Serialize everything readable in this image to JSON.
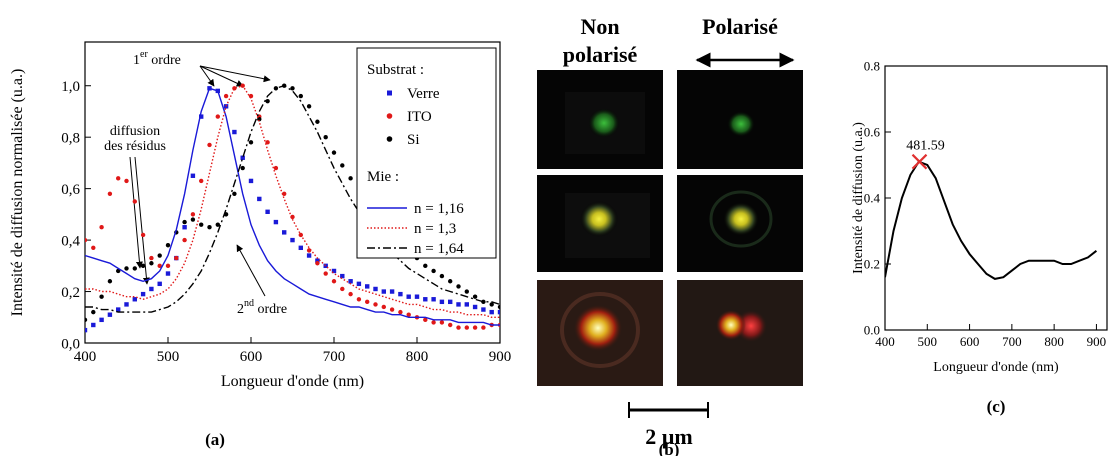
{
  "chart_data": [
    {
      "type": "line",
      "caption": "(a)",
      "xlabel": "Longueur d'onde (nm)",
      "ylabel": "Intensité de diffusion normalisée (u.a.)",
      "x": [
        400,
        410,
        420,
        430,
        440,
        450,
        460,
        470,
        480,
        490,
        500,
        510,
        520,
        530,
        540,
        550,
        560,
        570,
        580,
        590,
        600,
        610,
        620,
        630,
        640,
        650,
        660,
        670,
        680,
        690,
        700,
        710,
        720,
        730,
        740,
        750,
        760,
        770,
        780,
        790,
        800,
        810,
        820,
        830,
        840,
        850,
        860,
        870,
        880,
        890,
        900
      ],
      "xlim": [
        400,
        900
      ],
      "xticks": [
        400,
        500,
        600,
        700,
        800,
        900
      ],
      "ylim": [
        0,
        1.17
      ],
      "yticks": [
        {
          "value": 0,
          "label": "0,0"
        },
        {
          "value": 0.2,
          "label": "0,2"
        },
        {
          "value": 0.4,
          "label": "0,4"
        },
        {
          "value": 0.6,
          "label": "0,6"
        },
        {
          "value": 0.8,
          "label": "0,8"
        },
        {
          "value": 1,
          "label": "1,0"
        }
      ],
      "legend": "upper right",
      "groups": [
        {
          "title": "Substrat :",
          "series": [
            {
              "name": "Verre",
              "color": "#1a1ad8",
              "marker": "square",
              "values": [
                0.05,
                0.07,
                0.09,
                0.11,
                0.13,
                0.15,
                0.17,
                0.19,
                0.21,
                0.23,
                0.27,
                0.33,
                0.45,
                0.65,
                0.88,
                0.99,
                0.98,
                0.92,
                0.82,
                0.72,
                0.63,
                0.56,
                0.51,
                0.47,
                0.43,
                0.4,
                0.37,
                0.34,
                0.32,
                0.3,
                0.28,
                0.26,
                0.24,
                0.23,
                0.22,
                0.21,
                0.2,
                0.2,
                0.19,
                0.18,
                0.18,
                0.17,
                0.17,
                0.16,
                0.16,
                0.15,
                0.15,
                0.14,
                0.13,
                0.12,
                0.12
              ]
            },
            {
              "name": "ITO",
              "color": "#e01818",
              "marker": "circle",
              "values": [
                0.4,
                0.37,
                0.45,
                0.58,
                0.64,
                0.63,
                0.55,
                0.42,
                0.33,
                0.3,
                0.3,
                0.33,
                0.4,
                0.5,
                0.63,
                0.77,
                0.88,
                0.96,
                0.99,
                1.0,
                0.96,
                0.88,
                0.78,
                0.68,
                0.58,
                0.49,
                0.42,
                0.36,
                0.31,
                0.27,
                0.24,
                0.21,
                0.19,
                0.17,
                0.16,
                0.15,
                0.14,
                0.13,
                0.12,
                0.11,
                0.1,
                0.09,
                0.08,
                0.08,
                0.07,
                0.06,
                0.06,
                0.06,
                0.06,
                0.07,
                0.07
              ]
            },
            {
              "name": "Si",
              "color": "#000000",
              "marker": "circle",
              "values": [
                0.09,
                0.12,
                0.18,
                0.24,
                0.28,
                0.29,
                0.29,
                0.3,
                0.31,
                0.34,
                0.38,
                0.43,
                0.47,
                0.48,
                0.46,
                0.45,
                0.46,
                0.5,
                0.58,
                0.68,
                0.78,
                0.87,
                0.94,
                0.99,
                1.0,
                0.99,
                0.96,
                0.92,
                0.86,
                0.8,
                0.74,
                0.69,
                0.64,
                0.6,
                0.56,
                0.52,
                0.48,
                0.44,
                0.4,
                0.36,
                0.33,
                0.3,
                0.28,
                0.26,
                0.24,
                0.22,
                0.2,
                0.18,
                0.16,
                0.15,
                0.14
              ]
            }
          ]
        },
        {
          "title": "Mie :",
          "series": [
            {
              "name": "n = 1,16",
              "color": "#1a1ad8",
              "line": "solid",
              "values": [
                0.34,
                0.33,
                0.32,
                0.31,
                0.29,
                0.27,
                0.25,
                0.24,
                0.25,
                0.28,
                0.34,
                0.44,
                0.58,
                0.75,
                0.9,
                0.99,
                0.98,
                0.88,
                0.73,
                0.58,
                0.46,
                0.38,
                0.32,
                0.28,
                0.25,
                0.23,
                0.21,
                0.19,
                0.18,
                0.17,
                0.16,
                0.15,
                0.14,
                0.14,
                0.13,
                0.12,
                0.12,
                0.11,
                0.11,
                0.1,
                0.1,
                0.1,
                0.09,
                0.09,
                0.09,
                0.08,
                0.08,
                0.08,
                0.08,
                0.07,
                0.07
              ]
            },
            {
              "name": "n = 1,3",
              "color": "#e01818",
              "line": "dotted",
              "values": [
                0.21,
                0.21,
                0.2,
                0.2,
                0.19,
                0.18,
                0.18,
                0.17,
                0.18,
                0.19,
                0.21,
                0.25,
                0.31,
                0.4,
                0.52,
                0.66,
                0.8,
                0.92,
                0.99,
                1.0,
                0.95,
                0.86,
                0.75,
                0.65,
                0.56,
                0.48,
                0.42,
                0.37,
                0.33,
                0.3,
                0.27,
                0.25,
                0.23,
                0.21,
                0.2,
                0.19,
                0.18,
                0.17,
                0.16,
                0.15,
                0.15,
                0.14,
                0.13,
                0.13,
                0.12,
                0.12,
                0.11,
                0.11,
                0.11,
                0.1,
                0.1
              ]
            },
            {
              "name": "n = 1,64",
              "color": "#000000",
              "line": "dashdot",
              "values": [
                0.14,
                0.14,
                0.13,
                0.13,
                0.12,
                0.12,
                0.12,
                0.12,
                0.12,
                0.13,
                0.14,
                0.16,
                0.19,
                0.23,
                0.28,
                0.35,
                0.43,
                0.52,
                0.62,
                0.72,
                0.82,
                0.9,
                0.96,
                0.99,
                1.0,
                0.98,
                0.94,
                0.88,
                0.82,
                0.75,
                0.68,
                0.62,
                0.56,
                0.51,
                0.46,
                0.42,
                0.38,
                0.35,
                0.32,
                0.29,
                0.27,
                0.25,
                0.23,
                0.21,
                0.2,
                0.19,
                0.18,
                0.17,
                0.16,
                0.16,
                0.15
              ]
            }
          ]
        }
      ],
      "annotations": [
        {
          "text": [
            "1",
            "er",
            " ordre"
          ]
        },
        {
          "text": [
            "diffusion",
            "des résidus"
          ]
        },
        {
          "text": [
            "2",
            "nd",
            " ordre"
          ]
        }
      ]
    },
    {
      "type": "line",
      "caption": "(c)",
      "xlabel": "Longueur d'onde (nm)",
      "ylabel": "Intensité de diffusion (u.a.)",
      "x": [
        400,
        420,
        440,
        460,
        480,
        500,
        520,
        540,
        560,
        580,
        600,
        620,
        640,
        660,
        680,
        700,
        720,
        740,
        760,
        780,
        800,
        820,
        840,
        860,
        880,
        900
      ],
      "xlim": [
        400,
        925
      ],
      "xticks": [
        400,
        500,
        600,
        700,
        800,
        900
      ],
      "ylim": [
        0,
        0.8
      ],
      "yticks": [
        {
          "value": 0,
          "label": "0.0"
        },
        0.2,
        0.4,
        0.6,
        0.8
      ],
      "groups": [
        {
          "series": [
            {
              "color": "#000000",
              "line": "solid",
              "values": [
                0.16,
                0.3,
                0.4,
                0.47,
                0.51,
                0.5,
                0.46,
                0.39,
                0.32,
                0.27,
                0.23,
                0.2,
                0.17,
                0.155,
                0.16,
                0.18,
                0.2,
                0.21,
                0.21,
                0.21,
                0.21,
                0.2,
                0.2,
                0.21,
                0.22,
                0.24
              ]
            }
          ]
        }
      ],
      "peak": {
        "x": 481.59,
        "y": 0.51,
        "color": "#e03030"
      }
    }
  ],
  "panel_b": {
    "columns": [
      [
        "Non",
        "polarisé"
      ],
      [
        "Polarisé"
      ]
    ],
    "scale_bar": "2 µm",
    "caption": "(b)"
  }
}
